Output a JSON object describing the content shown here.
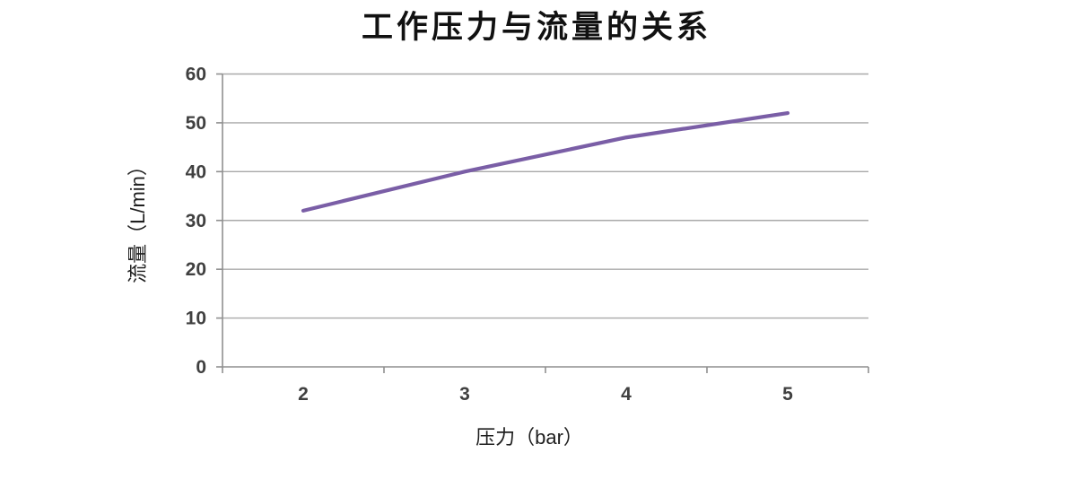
{
  "chart_data": {
    "type": "line",
    "title": "工作压力与流量的关系",
    "xlabel": "压力（bar）",
    "ylabel": "流量（L/min）",
    "categories": [
      "2",
      "3",
      "4",
      "5"
    ],
    "x": [
      2,
      3,
      4,
      5
    ],
    "series": [
      {
        "name": "流量",
        "values": [
          32,
          40,
          47,
          52
        ]
      }
    ],
    "ylim": [
      0,
      60
    ],
    "yticks": [
      0,
      10,
      20,
      30,
      40,
      50,
      60
    ],
    "grid": "horizontal",
    "legend": "none",
    "colors": {
      "line": "#7a5ea6",
      "gridline": "#a9a9a9",
      "axis": "#8f8f8f",
      "tick_label": "#404040",
      "axis_title": "#1f1f1f",
      "title": "#111111",
      "background": "#ffffff"
    }
  }
}
